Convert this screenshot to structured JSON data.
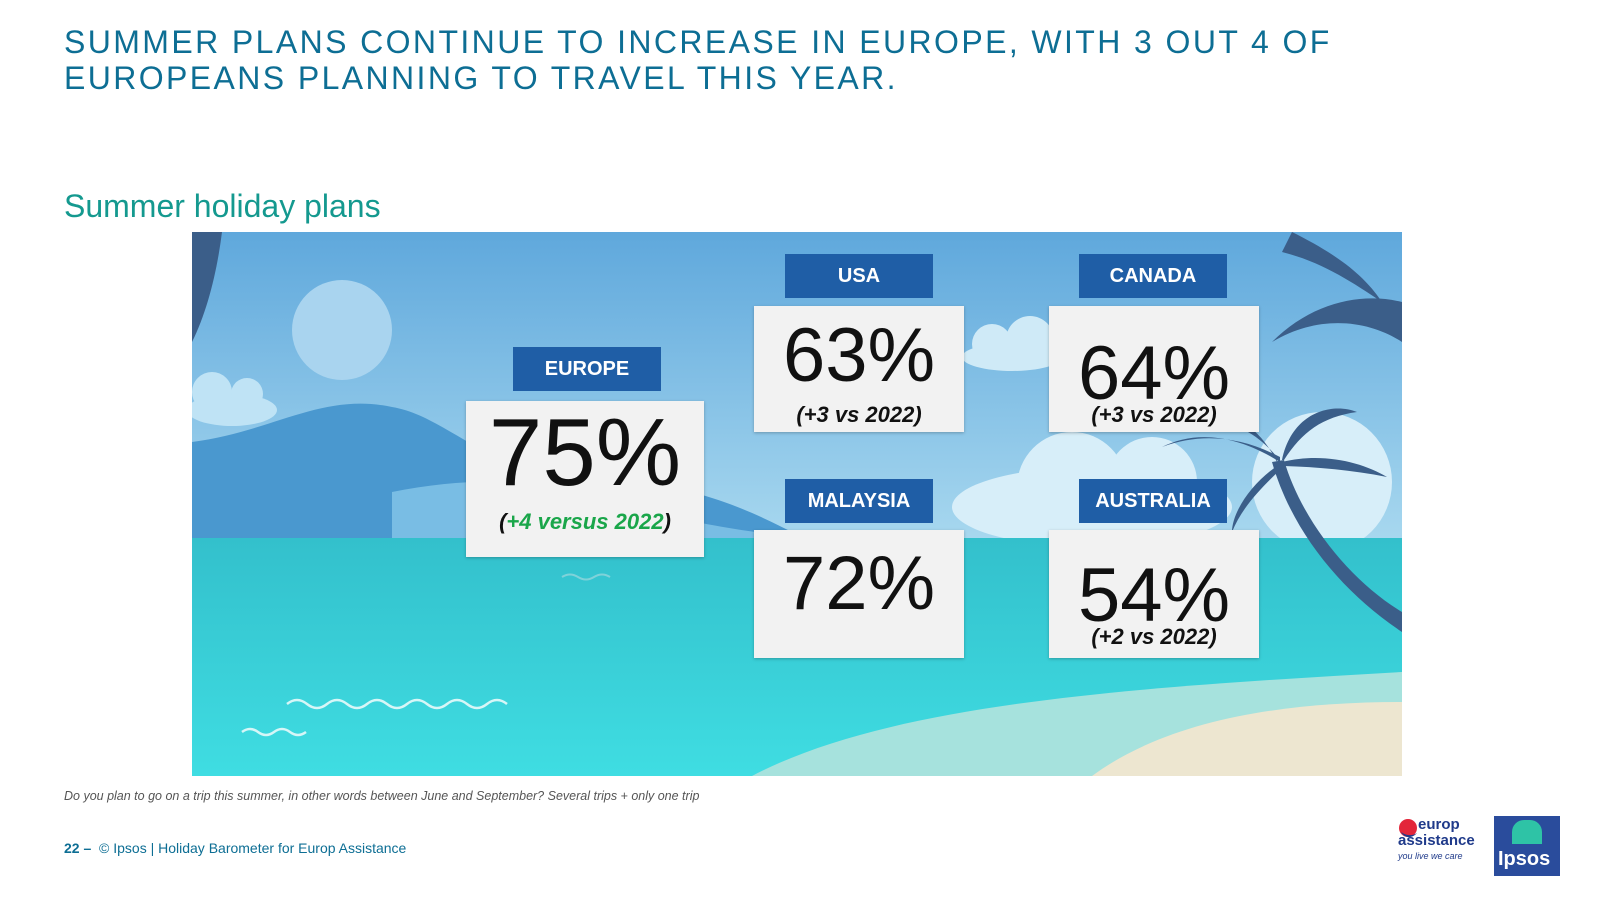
{
  "header": {
    "title_line1": "SUMMER PLANS CONTINUE TO INCREASE IN EUROPE, WITH 3 OUT 4 OF",
    "title_line2": "EUROPEANS PLANNING TO TRAVEL THIS YEAR."
  },
  "subtitle": "Summer holiday plans",
  "colors": {
    "title": "#0d6e94",
    "subtitle": "#14998f",
    "tag": "#1f5ea6",
    "card": "#f2f2f2",
    "positive": "#1aa64a"
  },
  "regions": {
    "europe": {
      "label": "EUROPE",
      "value": "75%",
      "change_open": "(",
      "change": "+4 versus 2022",
      "change_close": ")"
    },
    "usa": {
      "label": "USA",
      "value": "63%",
      "change_open": "(",
      "change": "+3 vs 2022)"
    },
    "canada": {
      "label": "CANADA",
      "value": "64%",
      "change_open": "(",
      "change": "+3 vs 2022)"
    },
    "malaysia": {
      "label": "MALAYSIA",
      "value": "72%"
    },
    "australia": {
      "label": "AUSTRALIA",
      "value": "54%",
      "change_open": "(",
      "change": "+2 vs 2022)"
    }
  },
  "question": "Do you plan to go on a trip this summer, in other words between June and September? Several trips + only one trip",
  "footer": {
    "page": "22 –",
    "text": "© Ipsos | Holiday Barometer for Europ Assistance"
  },
  "logos": {
    "ea_line1": "europ",
    "ea_line2": "assistance",
    "ea_tagline": "you live we care",
    "ipsos": "Ipsos"
  }
}
